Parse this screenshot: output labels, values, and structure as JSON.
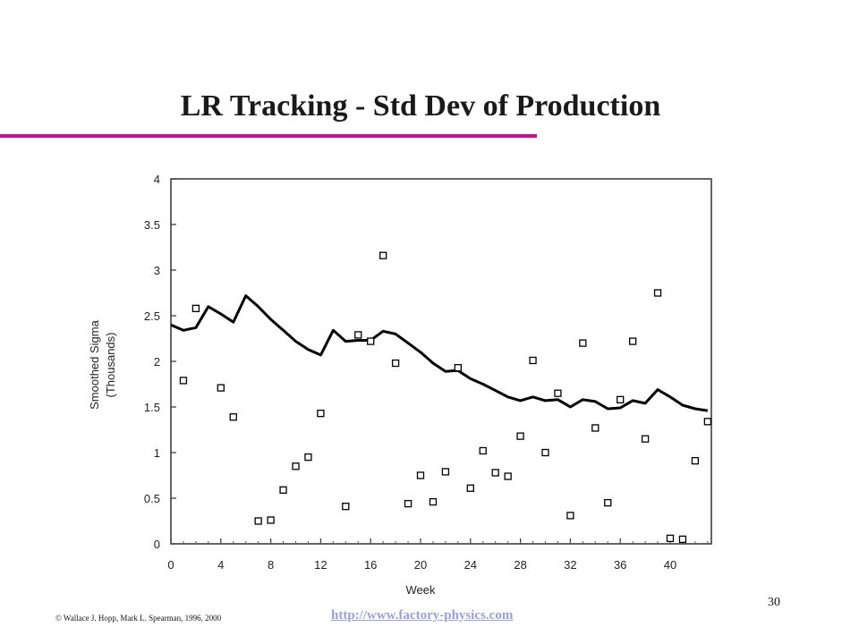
{
  "slide": {
    "title": "LR Tracking - Std Dev of Production",
    "copyright": "© Wallace J. Hopp, Mark L. Spearman, 1996, 2000",
    "link": "http://www.factory-physics.com",
    "page_number": "30"
  },
  "colors": {
    "accent_rule": "#c0148c",
    "link": "#9aa0d8",
    "line": "#000000",
    "marker": "#000000"
  },
  "chart_data": {
    "type": "scatter",
    "title": "",
    "xlabel": "Week",
    "ylabel_line1": "Smoothed Sigma",
    "ylabel_line2": "(Thousands)",
    "xlim": [
      0,
      43
    ],
    "ylim": [
      0,
      4
    ],
    "xticks": [
      0,
      4,
      8,
      12,
      16,
      20,
      24,
      28,
      32,
      36,
      40
    ],
    "xtick_labels": [
      "0",
      "4",
      "8",
      "12",
      "16",
      "20",
      "24",
      "28",
      "32",
      "36",
      "40"
    ],
    "yticks": [
      0,
      0.5,
      1,
      1.5,
      2,
      2.5,
      3,
      3.5,
      4
    ],
    "ytick_labels": [
      "0",
      "0.5",
      "1",
      "1.5",
      "2",
      "2.5",
      "3",
      "3.5",
      "4"
    ],
    "grid": false,
    "series": [
      {
        "kind": "line",
        "x": [
          0,
          1,
          2,
          3,
          4,
          5,
          6,
          7,
          8,
          9,
          10,
          11,
          12,
          13,
          14,
          15,
          16,
          17,
          18,
          19,
          20,
          21,
          22,
          23,
          24,
          25,
          26,
          27,
          28,
          29,
          30,
          31,
          32,
          33,
          34,
          35,
          36,
          37,
          38,
          39,
          40,
          41,
          42,
          43
        ],
        "y": [
          2.4,
          2.34,
          2.37,
          2.6,
          2.52,
          2.43,
          2.72,
          2.6,
          2.46,
          2.34,
          2.22,
          2.13,
          2.07,
          2.34,
          2.22,
          2.23,
          2.23,
          2.33,
          2.3,
          2.2,
          2.1,
          1.98,
          1.89,
          1.9,
          1.81,
          1.75,
          1.68,
          1.61,
          1.57,
          1.61,
          1.57,
          1.58,
          1.5,
          1.58,
          1.56,
          1.48,
          1.49,
          1.57,
          1.54,
          1.69,
          1.61,
          1.52,
          1.48,
          1.46
        ]
      },
      {
        "kind": "scatter",
        "x": [
          1,
          2,
          4,
          5,
          7,
          8,
          9,
          10,
          11,
          12,
          14,
          15,
          16,
          17,
          18,
          19,
          20,
          21,
          22,
          23,
          24,
          25,
          26,
          27,
          28,
          29,
          30,
          31,
          32,
          33,
          34,
          35,
          36,
          37,
          38,
          39,
          40,
          41,
          42,
          43
        ],
        "y": [
          1.79,
          2.58,
          1.71,
          1.39,
          0.25,
          0.26,
          0.59,
          0.85,
          0.95,
          1.43,
          0.41,
          2.29,
          2.22,
          3.16,
          1.98,
          0.44,
          0.75,
          0.46,
          0.79,
          1.93,
          0.61,
          1.02,
          0.78,
          0.74,
          1.18,
          2.01,
          1.0,
          1.65,
          0.31,
          2.2,
          1.27,
          0.45,
          1.58,
          2.22,
          1.15,
          2.75,
          0.06,
          0.05,
          0.91,
          1.34
        ]
      }
    ]
  }
}
